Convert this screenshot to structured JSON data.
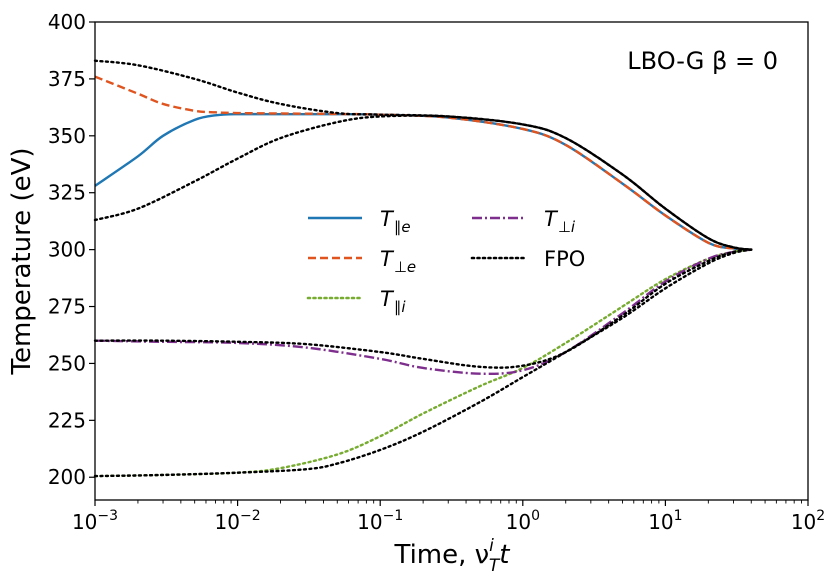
{
  "chart_data": {
    "type": "line",
    "annotation": "LBO-G β = 0",
    "xlabel": "Time, ν",
    "xlabel_sup": "i",
    "xlabel_sub": "T",
    "xlabel_tail": "t",
    "ylabel": "Temperature (eV)",
    "x_scale": "log",
    "xlim": [
      0.001,
      100
    ],
    "ylim": [
      190,
      400
    ],
    "y_ticks": [
      200,
      225,
      250,
      275,
      300,
      325,
      350,
      375,
      400
    ],
    "y_tick_labels": [
      "200",
      "225",
      "250",
      "275",
      "300",
      "325",
      "350",
      "375",
      "400"
    ],
    "x_ticks": [
      0.001,
      0.01,
      0.1,
      1,
      10,
      100
    ],
    "x_tick_labels": [
      {
        "base": "10",
        "exp": "−3"
      },
      {
        "base": "10",
        "exp": "−2"
      },
      {
        "base": "10",
        "exp": "−1"
      },
      {
        "base": "10",
        "exp": "0"
      },
      {
        "base": "10",
        "exp": "1"
      },
      {
        "base": "10",
        "exp": "2"
      }
    ],
    "grid": false,
    "legend_position": "center",
    "series": [
      {
        "name": "T∥e",
        "sym": "T",
        "sub": "∥e",
        "color": "#1f77b4",
        "dash": "solid",
        "x": [
          0.001,
          0.002,
          0.003,
          0.005,
          0.007,
          0.01,
          0.02,
          0.05,
          0.1,
          0.3,
          1,
          2,
          5,
          10,
          20,
          30,
          40
        ],
        "y": [
          328,
          341,
          350,
          357,
          359,
          359.5,
          359.5,
          359.5,
          359.3,
          358,
          353,
          346,
          329,
          315,
          303,
          300.5,
          300
        ]
      },
      {
        "name": "T⊥e",
        "sym": "T",
        "sub": "⊥e",
        "color": "#e0541f",
        "dash": "dashed",
        "x": [
          0.001,
          0.002,
          0.003,
          0.005,
          0.007,
          0.01,
          0.02,
          0.05,
          0.1,
          0.3,
          1,
          2,
          5,
          10,
          20,
          30,
          40
        ],
        "y": [
          376,
          368.5,
          364,
          361,
          360.3,
          360,
          359.8,
          359.6,
          359.3,
          358,
          353,
          346,
          329,
          315,
          303,
          300.5,
          300
        ]
      },
      {
        "name": "T∥i",
        "sym": "T",
        "sub": "∥i",
        "color": "#77ac30",
        "dash": "dotted",
        "x": [
          0.001,
          0.003,
          0.01,
          0.02,
          0.05,
          0.1,
          0.2,
          0.5,
          1,
          2,
          5,
          10,
          20,
          30,
          40
        ],
        "y": [
          200.5,
          201,
          202,
          204,
          210,
          218,
          228,
          240,
          248,
          259,
          275,
          287,
          296,
          299,
          300
        ]
      },
      {
        "name": "T⊥i",
        "sym": "T",
        "sub": "⊥i",
        "color": "#7e2f8e",
        "dash": "dashdot",
        "x": [
          0.001,
          0.003,
          0.01,
          0.03,
          0.1,
          0.2,
          0.5,
          1,
          2,
          5,
          10,
          20,
          30,
          40
        ],
        "y": [
          260,
          259.5,
          259,
          257,
          252,
          248,
          245.5,
          247,
          255,
          272,
          286,
          296,
          299,
          300
        ]
      },
      {
        "name": "FPO",
        "sym": "",
        "sub": "",
        "color": "#000000",
        "dash": "dotted",
        "x": [
          0.001,
          0.002,
          0.005,
          0.01,
          0.02,
          0.05,
          0.1,
          0.3,
          1,
          2,
          5,
          10,
          20,
          30,
          40
        ],
        "y": [
          383,
          381,
          375,
          369,
          364,
          360,
          359.3,
          358.5,
          355,
          349,
          333,
          318,
          305,
          301,
          300
        ]
      },
      {
        "name": "FPO",
        "sym": "",
        "sub": "",
        "color": "#000000",
        "dash": "dotted",
        "x": [
          0.001,
          0.002,
          0.005,
          0.01,
          0.02,
          0.05,
          0.1,
          0.3,
          1,
          2,
          5,
          10,
          20,
          30,
          40
        ],
        "y": [
          313,
          318,
          330,
          340,
          349,
          356,
          358.5,
          358.5,
          355,
          349,
          333,
          318,
          305,
          301,
          300
        ]
      },
      {
        "name": "FPO",
        "sym": "",
        "sub": "",
        "color": "#000000",
        "dash": "dotted",
        "x": [
          0.001,
          0.003,
          0.01,
          0.03,
          0.1,
          0.2,
          0.5,
          1,
          2,
          5,
          10,
          20,
          30,
          40
        ],
        "y": [
          260,
          260,
          259.5,
          258.5,
          255,
          252,
          248.5,
          249,
          255,
          271,
          285,
          295,
          299,
          300
        ]
      },
      {
        "name": "FPO",
        "sym": "",
        "sub": "",
        "color": "#000000",
        "dash": "dotted",
        "x": [
          0.001,
          0.003,
          0.01,
          0.03,
          0.05,
          0.1,
          0.2,
          0.5,
          1,
          2,
          5,
          10,
          20,
          30,
          40
        ],
        "y": [
          200.5,
          201,
          202,
          203.5,
          206,
          212,
          220,
          233,
          244,
          255,
          270,
          283,
          294,
          298.5,
          300
        ]
      }
    ],
    "legend": [
      {
        "sym": "T",
        "sub": "∥e",
        "color": "#1f77b4",
        "dash": "solid"
      },
      {
        "sym": "T",
        "sub": "⊥e",
        "color": "#e0541f",
        "dash": "dashed"
      },
      {
        "sym": "T",
        "sub": "∥i",
        "color": "#77ac30",
        "dash": "dotted"
      },
      {
        "sym": "T",
        "sub": "⊥i",
        "color": "#7e2f8e",
        "dash": "dashdot"
      },
      {
        "sym": "",
        "sub": "",
        "label": "FPO",
        "color": "#000000",
        "dash": "dotted"
      }
    ]
  }
}
